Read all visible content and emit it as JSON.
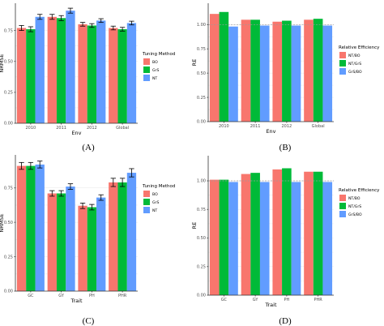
{
  "colors": {
    "red": "#F8766D",
    "green": "#00BA38",
    "blue": "#619CFF"
  },
  "panel_labels": [
    "(A)",
    "(B)",
    "(C)",
    "(D)"
  ],
  "chart_data": [
    {
      "type": "bar",
      "xlabel": "Env",
      "ylabel": "NRMSE",
      "categories": [
        "2010",
        "2011",
        "2012",
        "Global"
      ],
      "ylim": [
        0,
        0.97
      ],
      "yticks": [
        0.0,
        0.25,
        0.5,
        0.75
      ],
      "ytick_labels": [
        "0.00",
        "0.25",
        "0.50",
        "0.75"
      ],
      "error_bars": true,
      "legend_title": "Tuning Method",
      "legend_position": "right",
      "series": [
        {
          "name": "BO",
          "color": "#F8766D",
          "values": [
            0.77,
            0.86,
            0.8,
            0.77
          ],
          "err": [
            0.02,
            0.02,
            0.015,
            0.015
          ]
        },
        {
          "name": "GrS",
          "color": "#00BA38",
          "values": [
            0.76,
            0.85,
            0.79,
            0.76
          ],
          "err": [
            0.02,
            0.02,
            0.015,
            0.015
          ]
        },
        {
          "name": "NT",
          "color": "#619CFF",
          "values": [
            0.86,
            0.91,
            0.83,
            0.81
          ],
          "err": [
            0.02,
            0.02,
            0.015,
            0.015
          ]
        }
      ]
    },
    {
      "type": "bar",
      "xlabel": "Env",
      "ylabel": "RE",
      "categories": [
        "2010",
        "2011",
        "2012",
        "Global"
      ],
      "ylim": [
        0,
        1.22
      ],
      "yticks": [
        0.0,
        0.25,
        0.5,
        0.75,
        1.0
      ],
      "ytick_labels": [
        "0.00",
        "0.25",
        "0.50",
        "0.75",
        "1.00"
      ],
      "reference_line": 1.0,
      "legend_title": "Relative Efficiency",
      "legend_position": "right",
      "series": [
        {
          "name": "NT/BO",
          "color": "#F8766D",
          "values": [
            1.11,
            1.05,
            1.03,
            1.05
          ]
        },
        {
          "name": "NT/GrS",
          "color": "#00BA38",
          "values": [
            1.13,
            1.05,
            1.04,
            1.06
          ]
        },
        {
          "name": "GrS/BO",
          "color": "#619CFF",
          "values": [
            0.98,
            0.99,
            0.99,
            0.99
          ]
        }
      ]
    },
    {
      "type": "bar",
      "xlabel": "Trait",
      "ylabel": "NRMSE",
      "categories": [
        "GC",
        "GY",
        "PH",
        "PHR"
      ],
      "ylim": [
        0,
        0.99
      ],
      "yticks": [
        0.0,
        0.25,
        0.5,
        0.75
      ],
      "ytick_labels": [
        "0.00",
        "0.25",
        "0.50",
        "0.75"
      ],
      "error_bars": true,
      "legend_title": "Tuning Method",
      "legend_position": "right",
      "series": [
        {
          "name": "BO",
          "color": "#F8766D",
          "values": [
            0.91,
            0.71,
            0.62,
            0.79
          ],
          "err": [
            0.025,
            0.02,
            0.02,
            0.03
          ]
        },
        {
          "name": "GrS",
          "color": "#00BA38",
          "values": [
            0.91,
            0.71,
            0.61,
            0.79
          ],
          "err": [
            0.025,
            0.02,
            0.02,
            0.03
          ]
        },
        {
          "name": "NT",
          "color": "#619CFF",
          "values": [
            0.92,
            0.76,
            0.68,
            0.86
          ],
          "err": [
            0.025,
            0.02,
            0.02,
            0.03
          ]
        }
      ]
    },
    {
      "type": "bar",
      "xlabel": "Trait",
      "ylabel": "RE",
      "categories": [
        "GC",
        "GY",
        "PH",
        "PHR"
      ],
      "ylim": [
        0,
        1.22
      ],
      "yticks": [
        0.0,
        0.25,
        0.5,
        0.75,
        1.0
      ],
      "ytick_labels": [
        "0.00",
        "0.25",
        "0.50",
        "0.75",
        "1.00"
      ],
      "reference_line": 1.0,
      "legend_title": "Relative Efficiency",
      "legend_position": "right",
      "series": [
        {
          "name": "NT/BO",
          "color": "#F8766D",
          "values": [
            1.01,
            1.06,
            1.1,
            1.08
          ]
        },
        {
          "name": "NT/GrS",
          "color": "#00BA38",
          "values": [
            1.01,
            1.07,
            1.11,
            1.08
          ]
        },
        {
          "name": "GrS/BO",
          "color": "#619CFF",
          "values": [
            0.99,
            0.99,
            0.99,
            0.99
          ]
        }
      ]
    }
  ]
}
